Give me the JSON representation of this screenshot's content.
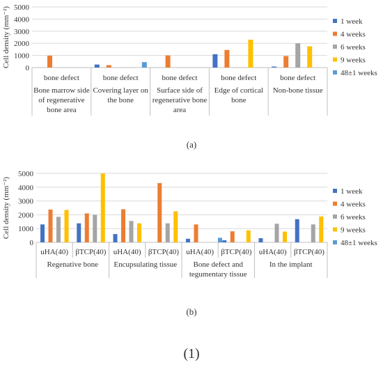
{
  "figure": {
    "panel_a_label": "(a)",
    "panel_b_label": "(b)",
    "figure_number": "(1)"
  },
  "colors": {
    "1 week": "#4472C4",
    "4 weeks": "#ED7D31",
    "6 weeks": "#A5A5A5",
    "9 weeks": "#FFC000",
    "48±1 weeks": "#5B9BD5",
    "grid": "#d9d9d9",
    "axis": "#bfbfbf"
  },
  "chart_data": [
    {
      "type": "bar",
      "ylabel": "Cell density (mm⁻²)",
      "ylim": [
        0,
        5000
      ],
      "yticks": [
        0,
        1000,
        2000,
        3000,
        4000,
        5000
      ],
      "grid": true,
      "legend_position": "right",
      "categories": [
        {
          "sub": "bone defect",
          "group": [
            "Bone marrow side",
            "of regenerative",
            "bone area"
          ]
        },
        {
          "sub": "bone defect",
          "group": [
            "Covering layer on",
            "the bone"
          ]
        },
        {
          "sub": "bone defect",
          "group": [
            "Surface side of",
            "regenerative bone",
            "area"
          ]
        },
        {
          "sub": "bone defect",
          "group": [
            "Edge of cortical",
            "bone"
          ]
        },
        {
          "sub": "bone defect",
          "group": [
            "Non-bone tissue"
          ]
        }
      ],
      "series": [
        {
          "name": "1 week",
          "values": [
            null,
            250,
            null,
            1100,
            80
          ]
        },
        {
          "name": "4 weeks",
          "values": [
            980,
            200,
            1000,
            1450,
            950
          ]
        },
        {
          "name": "6 weeks",
          "values": [
            null,
            null,
            null,
            null,
            2000
          ]
        },
        {
          "name": "9 weeks",
          "values": [
            null,
            null,
            null,
            2300,
            1750
          ]
        },
        {
          "name": "48±1 weeks",
          "values": [
            null,
            450,
            null,
            null,
            null
          ]
        }
      ]
    },
    {
      "type": "bar",
      "ylabel": "Cell density (mm⁻²)",
      "ylim": [
        0,
        5000
      ],
      "yticks": [
        0,
        1000,
        2000,
        3000,
        4000,
        5000
      ],
      "grid": true,
      "legend_position": "right",
      "categories": [
        "uHA(40)",
        "βTCP(40)",
        "uHA(40)",
        "βTCP(40)",
        "uHA(40)",
        "βTCP(40)",
        "uHA(40)",
        "βTCP(40)"
      ],
      "groups": [
        {
          "label": [
            "Regenative bone"
          ],
          "span": 2
        },
        {
          "label": [
            "Encupsulating tissue"
          ],
          "span": 2
        },
        {
          "label": [
            "Bone defect and",
            "tegumentary tissue"
          ],
          "span": 2
        },
        {
          "label": [
            "In the implant"
          ],
          "span": 2
        }
      ],
      "series": [
        {
          "name": "1 week",
          "values": [
            1300,
            1380,
            600,
            null,
            260,
            150,
            300,
            1680
          ]
        },
        {
          "name": "4 weeks",
          "values": [
            2380,
            2100,
            2400,
            4300,
            1300,
            800,
            null,
            null
          ]
        },
        {
          "name": "6 weeks",
          "values": [
            1850,
            2000,
            1550,
            1380,
            null,
            null,
            1350,
            1300
          ]
        },
        {
          "name": "9 weeks",
          "values": [
            2350,
            5000,
            1380,
            2250,
            null,
            870,
            780,
            1880
          ]
        },
        {
          "name": "48±1 weeks",
          "values": [
            null,
            null,
            null,
            null,
            330,
            null,
            null,
            null
          ]
        }
      ]
    }
  ]
}
